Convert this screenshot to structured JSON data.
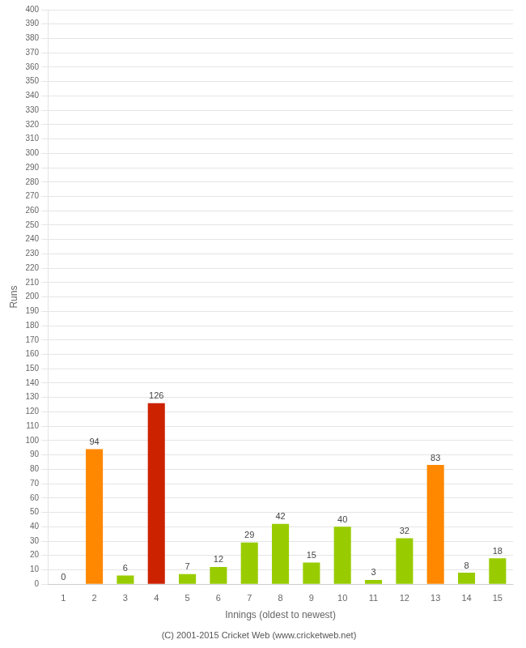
{
  "chart_data": {
    "type": "bar",
    "xlabel": "Innings (oldest to newest)",
    "ylabel": "Runs",
    "categories": [
      "1",
      "2",
      "3",
      "4",
      "5",
      "6",
      "7",
      "8",
      "9",
      "10",
      "11",
      "12",
      "13",
      "14",
      "15"
    ],
    "values": [
      0,
      94,
      6,
      126,
      7,
      12,
      29,
      42,
      15,
      40,
      3,
      32,
      83,
      8,
      18
    ],
    "colors": [
      "#99cc00",
      "#ff8800",
      "#99cc00",
      "#cc2200",
      "#99cc00",
      "#99cc00",
      "#99cc00",
      "#99cc00",
      "#99cc00",
      "#99cc00",
      "#99cc00",
      "#99cc00",
      "#ff8800",
      "#99cc00",
      "#99cc00"
    ],
    "ylim": [
      0,
      400
    ],
    "yticks": [
      0,
      10,
      20,
      30,
      40,
      50,
      60,
      70,
      80,
      90,
      100,
      110,
      120,
      130,
      140,
      150,
      160,
      170,
      180,
      190,
      200,
      210,
      220,
      230,
      240,
      250,
      260,
      270,
      280,
      290,
      300,
      310,
      320,
      330,
      340,
      350,
      360,
      370,
      380,
      390,
      400
    ],
    "grid": true,
    "data_labels": true,
    "annotations": [
      "(C) 2001-2015 Cricket Web (www.cricketweb.net)"
    ]
  }
}
